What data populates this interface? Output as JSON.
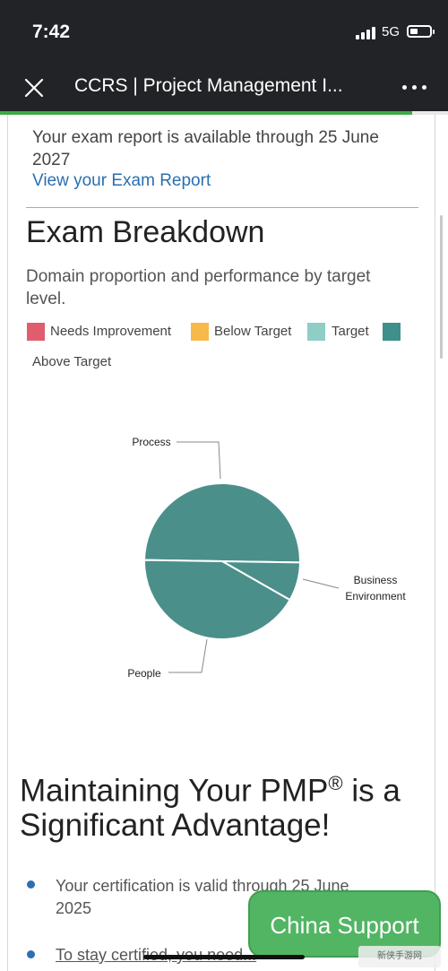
{
  "status_bar": {
    "time": "7:42",
    "network": "5G"
  },
  "app_bar": {
    "title": "CCRS | Project Management I...",
    "close_icon": "close-icon",
    "more_icon": "more-icon"
  },
  "page_load_progress": 0.92,
  "report": {
    "text": "Your exam report is available through 25 June 2027",
    "link": "View your Exam Report"
  },
  "breakdown": {
    "title": "Exam Breakdown",
    "subtitle": "Domain proportion and performance by target level.",
    "legend": [
      {
        "label": "Needs Improvement",
        "color": "#e05d6f"
      },
      {
        "label": "Below Target",
        "color": "#f6b94a"
      },
      {
        "label": "Target",
        "color": "#8fcdc5"
      },
      {
        "label": "Above Target",
        "color": "#3f8f8c"
      }
    ]
  },
  "chart_data": {
    "type": "pie",
    "slices": [
      {
        "label": "Process",
        "value": 50,
        "level": "Above Target",
        "color": "#4b8f8a"
      },
      {
        "label": "Business Environment",
        "value": 8,
        "level": "Above Target",
        "color": "#4b8f8a"
      },
      {
        "label": "People",
        "value": 42,
        "level": "Above Target",
        "color": "#4b8f8a"
      }
    ],
    "labels": {
      "process": "Process",
      "business_line1": "Business",
      "business_line2": "Environment",
      "people": "People"
    }
  },
  "maintaining": {
    "heading_part1": "Maintaining Your PMP",
    "heading_sup": "®",
    "heading_part2": " is a Significant Advantage!",
    "bullets": [
      "Your certification is valid through 25 June 2025",
      "To stay certified, you need..."
    ]
  },
  "support_button": "China Support",
  "watermark": "新侠手游网"
}
